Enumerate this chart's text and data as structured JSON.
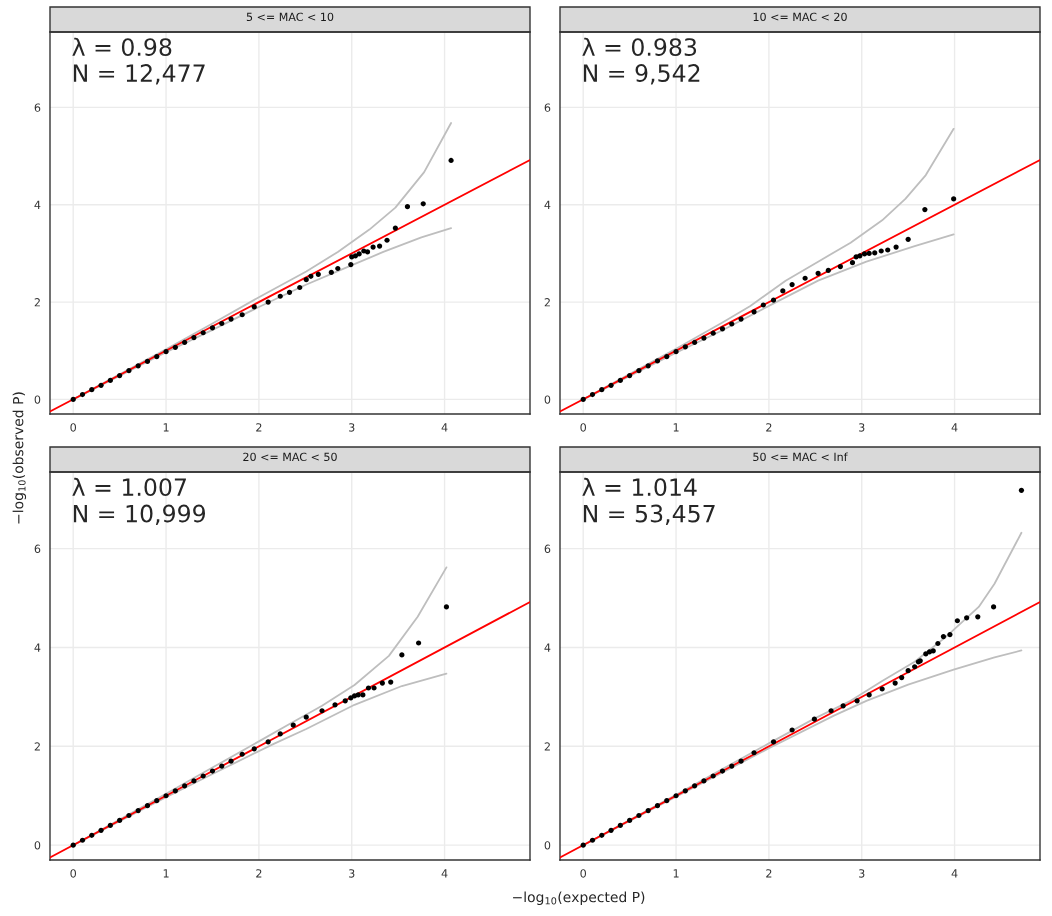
{
  "chart_data": [
    {
      "type": "scatter",
      "title": "5 <= MAC < 10",
      "ylabel": "−log$_{10}$(observed P)",
      "annotations": [
        "λ = 0.98",
        "N = 12,477"
      ],
      "xlim": [
        -0.25,
        4.92
      ],
      "ylim": [
        -0.3,
        7.55
      ],
      "xticks": [
        0,
        1,
        2,
        3,
        4
      ],
      "yticks": [
        0,
        2,
        4,
        6
      ],
      "grid": true,
      "series": [
        {
          "type": "line",
          "color": "#bebebe",
          "x": [
            0,
            1,
            1.5,
            2,
            2.51,
            2.85,
            3.19,
            3.47,
            3.78,
            4.07
          ],
          "values": [
            0,
            1.03,
            1.56,
            2.1,
            2.63,
            3.03,
            3.49,
            3.94,
            4.67,
            5.68
          ]
        },
        {
          "type": "line",
          "color": "#bebebe",
          "x": [
            0,
            1,
            1.5,
            2,
            2.5,
            2.99,
            3.34,
            3.75,
            4.07
          ],
          "values": [
            0,
            0.97,
            1.43,
            1.9,
            2.35,
            2.75,
            3.03,
            3.33,
            3.52
          ]
        },
        {
          "type": "line",
          "color": "#ff0000",
          "x": [
            -0.25,
            4.92
          ],
          "values": [
            -0.25,
            4.92
          ]
        },
        {
          "color": "#000000",
          "marker": "circle",
          "x": [
            0,
            0.1,
            0.2,
            0.3,
            0.4,
            0.5,
            0.6,
            0.7,
            0.8,
            0.9,
            1.0,
            1.1,
            1.2,
            1.3,
            1.4,
            1.5,
            1.6,
            1.7,
            1.82,
            1.95,
            2.1,
            2.23,
            2.33,
            2.44,
            2.51,
            2.56,
            2.64,
            2.78,
            2.85,
            2.99,
            3.0,
            3.04,
            3.08,
            3.13,
            3.17,
            3.23,
            3.3,
            3.38,
            3.47,
            3.6,
            3.77,
            4.07
          ],
          "values": [
            0,
            0.1,
            0.2,
            0.29,
            0.39,
            0.49,
            0.59,
            0.69,
            0.78,
            0.88,
            0.98,
            1.07,
            1.17,
            1.27,
            1.37,
            1.47,
            1.56,
            1.65,
            1.74,
            1.9,
            2.0,
            2.12,
            2.2,
            2.3,
            2.46,
            2.53,
            2.57,
            2.61,
            2.69,
            2.77,
            2.93,
            2.95,
            2.99,
            3.05,
            3.03,
            3.13,
            3.15,
            3.27,
            3.52,
            3.96,
            4.02,
            4.91
          ]
        }
      ]
    },
    {
      "type": "scatter",
      "title": "20 <= MAC < 50",
      "xlabel": "−log$_{10}$(expected P)",
      "annotations": [
        "λ = 1.007",
        "N = 10,999"
      ],
      "xlim": [
        -0.25,
        4.92
      ],
      "ylim": [
        -0.3,
        7.55
      ],
      "xticks": [
        0,
        1,
        2,
        3,
        4
      ],
      "yticks": [
        0,
        2,
        4,
        6
      ],
      "grid": true,
      "series": [
        {
          "type": "line",
          "color": "#bebebe",
          "x": [
            0,
            1,
            1.5,
            2,
            2.33,
            2.68,
            3.03,
            3.4,
            3.71,
            4.02
          ],
          "values": [
            0,
            1.04,
            1.57,
            2.1,
            2.45,
            2.82,
            3.24,
            3.83,
            4.62,
            5.62
          ]
        },
        {
          "type": "line",
          "color": "#bebebe",
          "x": [
            0,
            1,
            1.5,
            2.16,
            2.51,
            3.03,
            3.54,
            4.02
          ],
          "values": [
            0,
            0.97,
            1.44,
            2.05,
            2.35,
            2.84,
            3.22,
            3.47
          ]
        },
        {
          "type": "line",
          "color": "#ff0000",
          "x": [
            -0.25,
            4.92
          ],
          "values": [
            -0.25,
            4.92
          ]
        },
        {
          "color": "#000000",
          "marker": "circle",
          "x": [
            0,
            0.1,
            0.2,
            0.3,
            0.4,
            0.5,
            0.6,
            0.7,
            0.8,
            0.9,
            1.0,
            1.1,
            1.2,
            1.3,
            1.4,
            1.5,
            1.6,
            1.7,
            1.82,
            1.95,
            2.1,
            2.23,
            2.37,
            2.51,
            2.68,
            2.82,
            2.93,
            2.99,
            3.03,
            3.07,
            3.12,
            3.18,
            3.24,
            3.33,
            3.42,
            3.54,
            3.72,
            4.02
          ],
          "values": [
            0,
            0.1,
            0.2,
            0.3,
            0.4,
            0.5,
            0.6,
            0.7,
            0.8,
            0.9,
            1.0,
            1.1,
            1.2,
            1.3,
            1.4,
            1.5,
            1.6,
            1.7,
            1.84,
            1.95,
            2.09,
            2.25,
            2.43,
            2.59,
            2.72,
            2.84,
            2.92,
            2.98,
            3.02,
            3.04,
            3.04,
            3.18,
            3.18,
            3.28,
            3.3,
            3.85,
            4.09,
            4.82
          ]
        }
      ]
    },
    {
      "type": "scatter",
      "title": "10 <= MAC < 20",
      "annotations": [
        "λ = 0.983",
        "N = 9,542"
      ],
      "xlim": [
        -0.25,
        4.92
      ],
      "ylim": [
        -0.3,
        7.55
      ],
      "xticks": [
        0,
        1,
        2,
        3,
        4
      ],
      "yticks": [
        0,
        2,
        4,
        6
      ],
      "grid": true,
      "series": [
        {
          "type": "line",
          "color": "#bebebe",
          "x": [
            0,
            1,
            1.5,
            1.8,
            2.18,
            2.53,
            2.88,
            3.22,
            3.47,
            3.69,
            3.99
          ],
          "values": [
            0,
            1.04,
            1.58,
            1.92,
            2.44,
            2.83,
            3.22,
            3.68,
            4.12,
            4.61,
            5.56
          ]
        },
        {
          "type": "line",
          "color": "#bebebe",
          "x": [
            0,
            1,
            1.5,
            2.12,
            2.53,
            3.05,
            3.57,
            3.99
          ],
          "values": [
            0,
            0.96,
            1.42,
            2.04,
            2.44,
            2.83,
            3.15,
            3.39
          ]
        },
        {
          "type": "line",
          "color": "#ff0000",
          "x": [
            -0.25,
            4.92
          ],
          "values": [
            -0.25,
            4.92
          ]
        },
        {
          "color": "#000000",
          "marker": "circle",
          "x": [
            0,
            0.1,
            0.2,
            0.3,
            0.4,
            0.5,
            0.6,
            0.7,
            0.8,
            0.9,
            1.0,
            1.1,
            1.2,
            1.3,
            1.4,
            1.5,
            1.6,
            1.7,
            1.84,
            1.94,
            2.05,
            2.15,
            2.25,
            2.39,
            2.53,
            2.64,
            2.77,
            2.9,
            2.94,
            2.98,
            3.03,
            3.08,
            3.14,
            3.21,
            3.28,
            3.37,
            3.5,
            3.68,
            3.99
          ],
          "values": [
            0,
            0.1,
            0.2,
            0.29,
            0.39,
            0.49,
            0.59,
            0.69,
            0.79,
            0.88,
            0.98,
            1.08,
            1.17,
            1.26,
            1.36,
            1.45,
            1.55,
            1.65,
            1.8,
            1.94,
            2.04,
            2.23,
            2.36,
            2.49,
            2.59,
            2.65,
            2.73,
            2.81,
            2.93,
            2.95,
            2.99,
            3.0,
            3.01,
            3.05,
            3.07,
            3.13,
            3.29,
            3.9,
            4.12
          ]
        }
      ]
    },
    {
      "type": "scatter",
      "title": "50 <= MAC < Inf",
      "annotations": [
        "λ = 1.014",
        "N = 53,457"
      ],
      "xlim": [
        -0.25,
        4.92
      ],
      "ylim": [
        -0.3,
        7.55
      ],
      "xticks": [
        0,
        1,
        2,
        3,
        4
      ],
      "yticks": [
        0,
        2,
        4,
        6
      ],
      "grid": true,
      "series": [
        {
          "type": "line",
          "color": "#bebebe",
          "x": [
            0,
            1,
            1.5,
            2,
            2.5,
            2.88,
            3.22,
            3.57,
            3.91,
            4.26,
            4.43,
            4.72
          ],
          "values": [
            0,
            1.02,
            1.54,
            2.06,
            2.57,
            2.92,
            3.32,
            3.71,
            4.22,
            4.82,
            5.29,
            6.32
          ]
        },
        {
          "type": "line",
          "color": "#bebebe",
          "x": [
            0,
            1,
            1.5,
            2,
            2.7,
            3.05,
            3.5,
            3.99,
            4.43,
            4.72
          ],
          "values": [
            0,
            0.98,
            1.47,
            1.96,
            2.62,
            2.92,
            3.25,
            3.55,
            3.8,
            3.94
          ]
        },
        {
          "type": "line",
          "color": "#ff0000",
          "x": [
            -0.25,
            4.92
          ],
          "values": [
            -0.25,
            4.92
          ]
        },
        {
          "color": "#000000",
          "marker": "circle",
          "x": [
            0,
            0.1,
            0.2,
            0.3,
            0.4,
            0.5,
            0.6,
            0.7,
            0.8,
            0.9,
            1.0,
            1.1,
            1.2,
            1.3,
            1.4,
            1.5,
            1.6,
            1.7,
            1.84,
            2.05,
            2.25,
            2.49,
            2.67,
            2.8,
            2.95,
            3.08,
            3.22,
            3.36,
            3.43,
            3.5,
            3.57,
            3.61,
            3.63,
            3.69,
            3.73,
            3.77,
            3.82,
            3.88,
            3.95,
            4.03,
            4.13,
            4.25,
            4.42,
            4.72
          ],
          "values": [
            0,
            0.1,
            0.2,
            0.3,
            0.4,
            0.5,
            0.6,
            0.7,
            0.8,
            0.9,
            1.0,
            1.1,
            1.2,
            1.3,
            1.4,
            1.5,
            1.6,
            1.7,
            1.87,
            2.09,
            2.33,
            2.55,
            2.72,
            2.82,
            2.92,
            3.04,
            3.16,
            3.28,
            3.39,
            3.53,
            3.61,
            3.71,
            3.73,
            3.87,
            3.91,
            3.93,
            4.08,
            4.22,
            4.26,
            4.54,
            4.6,
            4.62,
            4.82,
            7.18
          ]
        }
      ]
    }
  ]
}
